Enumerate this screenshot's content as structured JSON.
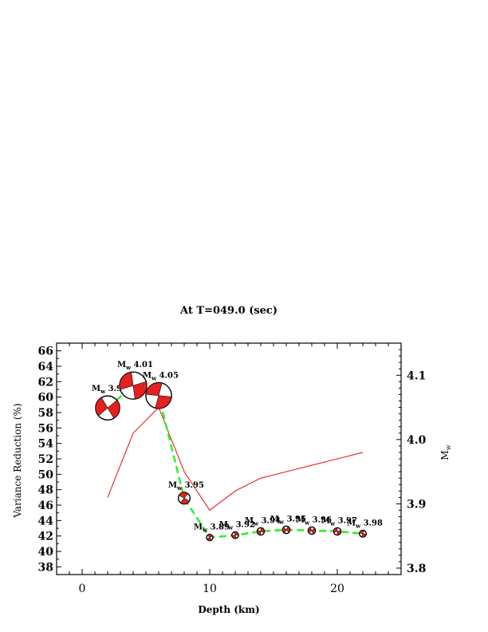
{
  "chart_data": {
    "type": "line",
    "title": "At T=049.0 (sec)",
    "xlabel": "Depth (km)",
    "ylabel_left": "Variance Reduction (%)",
    "ylabel_right": "M",
    "ylabel_right_sub": "w",
    "xlim": [
      -2,
      25
    ],
    "ylim_left": [
      37,
      67
    ],
    "ylim_right": [
      3.79,
      4.15
    ],
    "x_ticks": [
      0,
      10,
      20
    ],
    "y_ticks_left": [
      38,
      40,
      42,
      44,
      46,
      48,
      50,
      52,
      54,
      56,
      58,
      60,
      62,
      64,
      66
    ],
    "y_ticks_right": [
      3.8,
      3.9,
      4.0,
      4.1
    ],
    "depth": [
      2,
      4,
      6,
      8,
      10,
      12,
      14,
      16,
      18,
      20,
      22
    ],
    "series": [
      {
        "name": "Variance Reduction (%)",
        "axis": "left",
        "color": "#e62020",
        "values": [
          58.6,
          61.5,
          60.2,
          46.9,
          41.8,
          42.1,
          42.6,
          42.8,
          42.7,
          42.6,
          42.3
        ]
      },
      {
        "name": "M",
        "axis": "right",
        "color": "#e62020",
        "values": [
          3.91,
          4.01,
          4.05,
          3.95,
          3.89,
          3.92,
          3.94,
          3.95,
          3.96,
          3.97,
          3.98
        ]
      }
    ],
    "vr_fit_color": "#33ee33",
    "mw_labels": [
      "3.91",
      "4.01",
      "4.05",
      "3.95",
      "3.89",
      "3.92",
      "3.94",
      "3.95",
      "3.96",
      "3.97",
      "3.98"
    ],
    "mw_label_prefix": "M",
    "mw_label_sub": "w",
    "beachball_fill": "#e62020",
    "grid": false
  }
}
